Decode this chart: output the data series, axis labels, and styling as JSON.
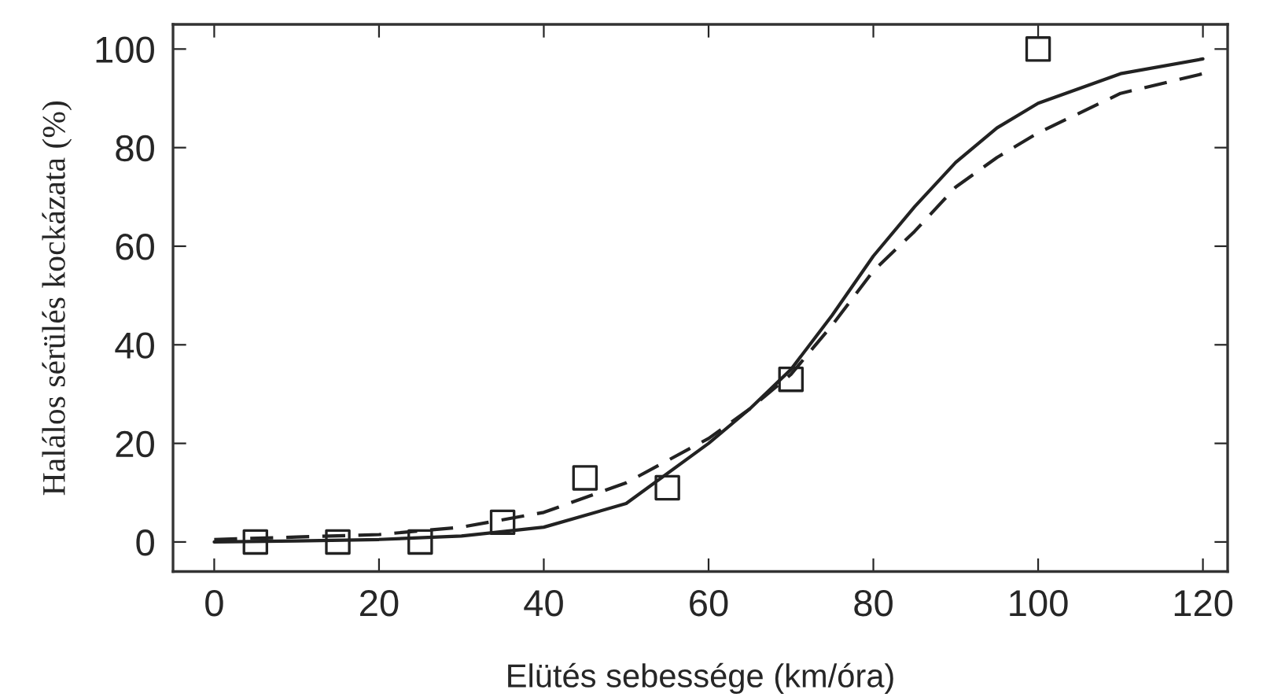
{
  "chart_data": {
    "type": "line",
    "xlabel": "Elütés sebessége (km/óra)",
    "ylabel": "Halálos sérülés kockázata (%)",
    "xlim": [
      -5,
      123
    ],
    "ylim": [
      -6,
      105
    ],
    "xticks": [
      0,
      20,
      40,
      60,
      80,
      100,
      120
    ],
    "yticks": [
      0,
      20,
      40,
      60,
      80,
      100
    ],
    "grid": false,
    "series": [
      {
        "type": "scatter",
        "marker": "square",
        "color": "#222222",
        "x": [
          5,
          15,
          25,
          35,
          45,
          55,
          70,
          100
        ],
        "values": [
          0,
          0,
          0,
          4,
          13,
          11,
          33,
          100
        ]
      },
      {
        "line_style": "solid",
        "color": "#222222",
        "x": [
          0,
          10,
          20,
          30,
          40,
          50,
          60,
          65,
          70,
          75,
          80,
          85,
          90,
          95,
          100,
          110,
          120
        ],
        "values": [
          0,
          0.2,
          0.5,
          1.2,
          3,
          7.8,
          20,
          27,
          35,
          46,
          58,
          68,
          77,
          84,
          89,
          95,
          98
        ]
      },
      {
        "line_style": "dashed",
        "color": "#222222",
        "x": [
          0,
          10,
          20,
          30,
          40,
          50,
          60,
          65,
          70,
          75,
          80,
          85,
          90,
          95,
          100,
          110,
          120
        ],
        "values": [
          0.5,
          1,
          1.5,
          3,
          6,
          12,
          21,
          27,
          34,
          44,
          55,
          63,
          72,
          78,
          83,
          91,
          95
        ]
      }
    ]
  }
}
